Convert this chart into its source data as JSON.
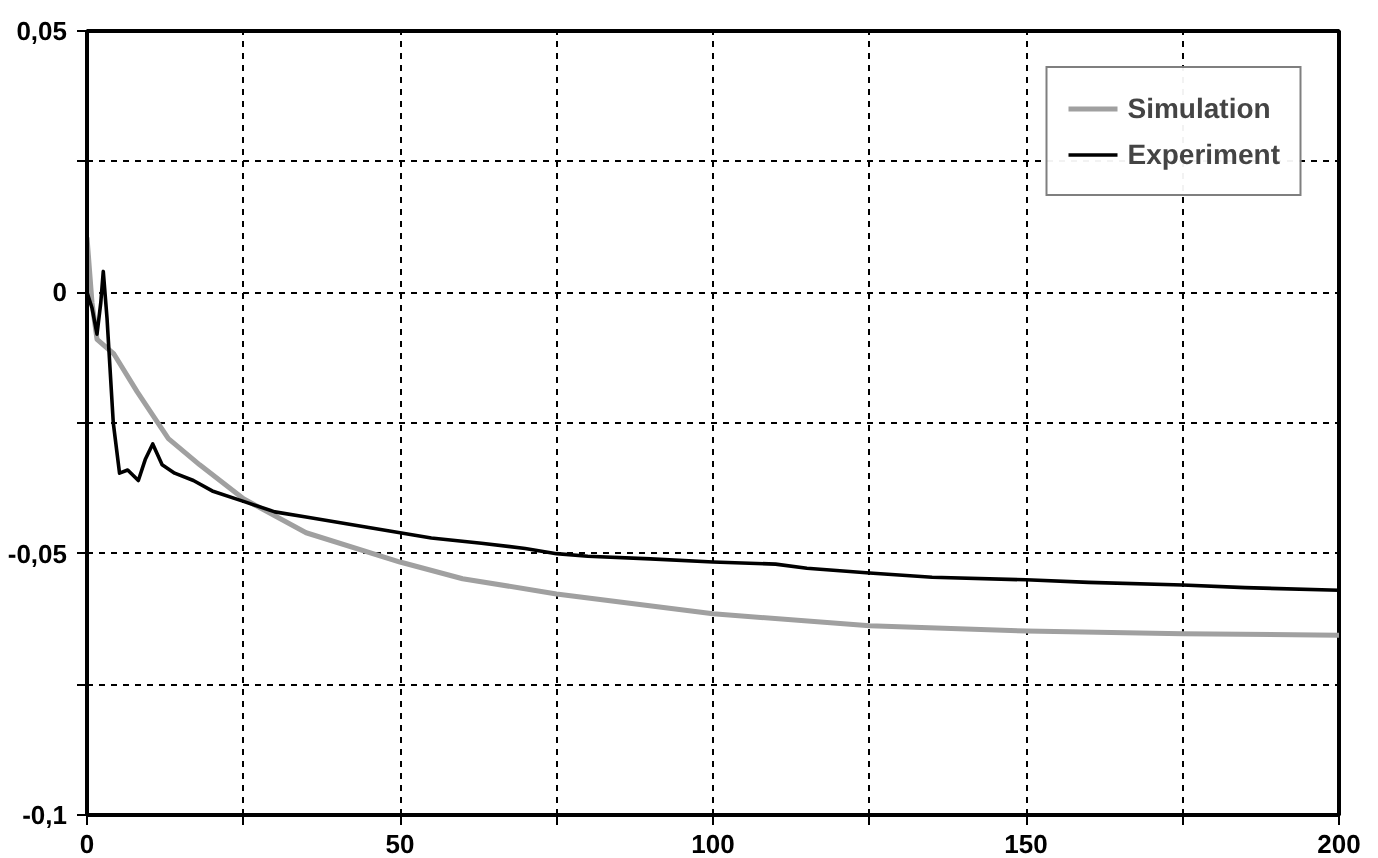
{
  "chart_data": {
    "type": "line",
    "xlim": [
      0,
      200
    ],
    "ylim": [
      -0.1,
      0.05
    ],
    "xticks": [
      0,
      {
        "value": 25,
        "label": null
      },
      50,
      {
        "value": 75,
        "label": null
      },
      100,
      {
        "value": 125,
        "label": null
      },
      150,
      {
        "value": 175,
        "label": null
      },
      200
    ],
    "yticks": [
      {
        "value": -0.1,
        "label": "-0,1"
      },
      {
        "value": -0.075,
        "label": null
      },
      {
        "value": -0.05,
        "label": "-0,05"
      },
      {
        "value": -0.025,
        "label": null
      },
      {
        "value": 0,
        "label": "0"
      },
      {
        "value": 0.025,
        "label": null
      },
      {
        "value": 0.05,
        "label": "0,05"
      }
    ],
    "grid": true,
    "legend": "top right",
    "line_style": "solid",
    "marker": "none",
    "series": [
      {
        "name": "Simulation",
        "color": "#a0a0a0",
        "x": [
          0,
          0.8,
          1.6,
          4.3,
          8,
          13,
          18,
          25,
          35,
          50,
          60,
          75,
          100,
          125,
          150,
          175,
          200
        ],
        "values": [
          0.0105,
          -0.002,
          -0.009,
          -0.0118,
          -0.019,
          -0.028,
          -0.033,
          -0.0395,
          -0.046,
          -0.0516,
          -0.0548,
          -0.0577,
          -0.0615,
          -0.0638,
          -0.0648,
          -0.0653,
          -0.0656
        ]
      },
      {
        "name": "Experiment",
        "color": "#000000",
        "x": [
          0,
          0.8,
          1.6,
          2.2,
          2.6,
          3.2,
          4.2,
          5.2,
          6.5,
          8.2,
          9.3,
          10.5,
          12,
          14,
          17,
          20,
          25,
          30,
          35,
          40,
          45,
          50,
          55,
          63,
          70,
          75,
          80,
          90,
          100,
          110,
          115,
          125,
          135,
          150,
          160,
          175,
          185,
          200
        ],
        "values": [
          0,
          -0.003,
          -0.008,
          -0.002,
          0.004,
          -0.005,
          -0.025,
          -0.0346,
          -0.034,
          -0.036,
          -0.032,
          -0.029,
          -0.033,
          -0.0346,
          -0.036,
          -0.038,
          -0.04,
          -0.042,
          -0.043,
          -0.044,
          -0.045,
          -0.046,
          -0.047,
          -0.048,
          -0.049,
          -0.05,
          -0.0505,
          -0.051,
          -0.0516,
          -0.052,
          -0.0528,
          -0.0537,
          -0.0545,
          -0.055,
          -0.0555,
          -0.056,
          -0.0565,
          -0.057
        ]
      }
    ]
  }
}
